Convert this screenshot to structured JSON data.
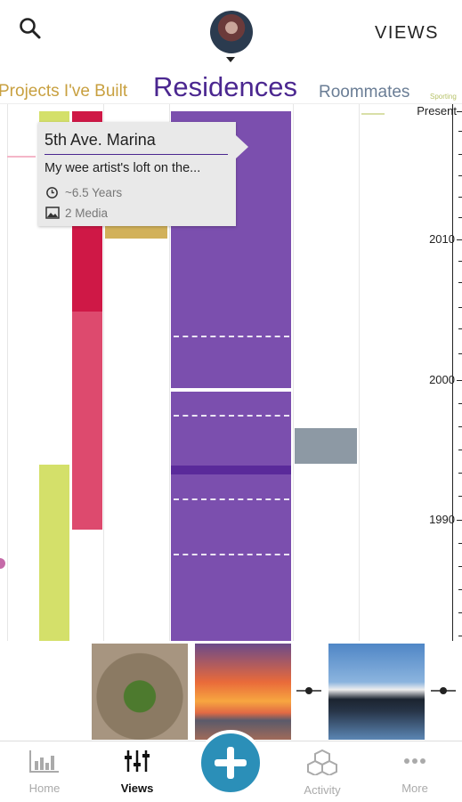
{
  "header": {
    "views_label": "VIEWS"
  },
  "tabs": [
    {
      "label": "Projects I've Built"
    },
    {
      "label": "Residences"
    },
    {
      "label": "Roommates"
    },
    {
      "label": "Sporting"
    }
  ],
  "axis": {
    "labels": [
      "Present",
      "2010",
      "2000",
      "1990"
    ]
  },
  "tooltip": {
    "title": "5th Ave. Marina",
    "description": "My wee artist's loft on the...",
    "duration": "~6.5 Years",
    "media": "2 Media"
  },
  "colors": {
    "residences": "#7b4fae",
    "residences_dark": "#5a2a9a",
    "projects_green": "#d4e06a",
    "red": "#cf1846",
    "pink_red": "#dd4a6e",
    "gold": "#d2b15a",
    "roommate_gray": "#8d99a4",
    "fab": "#2b8fb8"
  },
  "bottom_nav": [
    {
      "label": "Home",
      "icon": "bar-chart-icon"
    },
    {
      "label": "Views",
      "icon": "sliders-icon"
    },
    {
      "label": "Activity",
      "icon": "cubes-icon"
    },
    {
      "label": "More",
      "icon": "more-dots-icon"
    }
  ],
  "media_strip": [
    {
      "icon": "plant-photo"
    },
    {
      "icon": "sunset-photo"
    },
    {
      "icon": "timeline-connector-icon"
    },
    {
      "icon": "boat-photo"
    },
    {
      "icon": "timeline-connector-icon"
    }
  ]
}
